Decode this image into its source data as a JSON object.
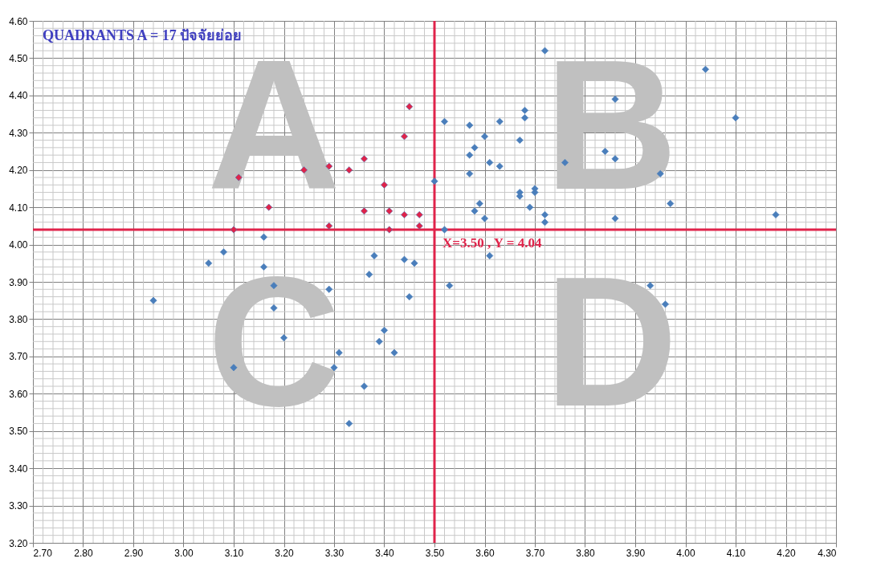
{
  "chart_data": {
    "type": "scatter",
    "title": "QUADRANTS A = 17 ปัจจัยย่อย",
    "series": [
      {
        "type": "scatter",
        "color": "#e0234a",
        "x": [
          3.11,
          3.17,
          3.1,
          3.24,
          3.29,
          3.29,
          3.33,
          3.36,
          3.36,
          3.4,
          3.41,
          3.41,
          3.44,
          3.44,
          3.45,
          3.47,
          3.47
        ],
        "values": [
          4.18,
          4.1,
          4.04,
          4.2,
          4.21,
          4.05,
          4.2,
          4.23,
          4.09,
          4.16,
          4.09,
          4.04,
          4.29,
          4.08,
          4.37,
          4.08,
          4.05
        ]
      },
      {
        "type": "scatter",
        "color": "#4a7ebb",
        "x": [
          3.5,
          3.52,
          3.57,
          3.57,
          3.58,
          3.57,
          3.58,
          3.59,
          3.6,
          3.6,
          3.61,
          3.63,
          3.63,
          3.67,
          3.67,
          3.67,
          3.68,
          3.68,
          3.69,
          3.7,
          3.7,
          3.72,
          3.72,
          3.72,
          3.76,
          3.84,
          3.86,
          3.86,
          3.86,
          3.95,
          3.97,
          4.04,
          4.1,
          4.18,
          3.52,
          2.94,
          3.05,
          3.08,
          3.1,
          3.16,
          3.16,
          3.18,
          3.18,
          3.2,
          3.29,
          3.3,
          3.31,
          3.33,
          3.36,
          3.37,
          3.38,
          3.39,
          3.4,
          3.42,
          3.44,
          3.45,
          3.46,
          3.53,
          3.61,
          3.93,
          3.96
        ],
        "values": [
          4.17,
          4.33,
          4.32,
          4.24,
          4.26,
          4.19,
          4.09,
          4.11,
          4.29,
          4.07,
          4.22,
          4.33,
          4.21,
          4.28,
          4.14,
          4.13,
          4.36,
          4.34,
          4.1,
          4.15,
          4.14,
          4.52,
          4.08,
          4.06,
          4.22,
          4.25,
          4.39,
          4.23,
          4.07,
          4.19,
          4.11,
          4.47,
          4.34,
          4.08,
          4.04,
          3.85,
          3.95,
          3.98,
          3.67,
          4.02,
          3.94,
          3.89,
          3.83,
          3.75,
          3.88,
          3.67,
          3.71,
          3.52,
          3.62,
          3.92,
          3.97,
          3.74,
          3.77,
          3.71,
          3.96,
          3.86,
          3.95,
          3.89,
          3.97,
          3.89,
          3.84
        ]
      }
    ],
    "marker": "diamond",
    "xlim": [
      2.7,
      4.3
    ],
    "xticks": [
      {
        "value": 2.7,
        "label": "2.70"
      },
      {
        "value": 2.8,
        "label": "2.80"
      },
      {
        "value": 2.9,
        "label": "2.90"
      },
      {
        "value": 3.0,
        "label": "3.00"
      },
      {
        "value": 3.1,
        "label": "3.10"
      },
      {
        "value": 3.2,
        "label": "3.20"
      },
      {
        "value": 3.3,
        "label": "3.30"
      },
      {
        "value": 3.4,
        "label": "3.40"
      },
      {
        "value": 3.5,
        "label": "3.50"
      },
      {
        "value": 3.6,
        "label": "3.60"
      },
      {
        "value": 3.7,
        "label": "3.70"
      },
      {
        "value": 3.8,
        "label": "3.80"
      },
      {
        "value": 3.9,
        "label": "3.90"
      },
      {
        "value": 4.0,
        "label": "4.00"
      },
      {
        "value": 4.1,
        "label": "4.10"
      },
      {
        "value": 4.2,
        "label": "4.20"
      },
      {
        "value": 4.3,
        "label": "4.30"
      }
    ],
    "ylim": [
      3.2,
      4.6
    ],
    "yticks": [
      {
        "value": 3.2,
        "label": "3.20"
      },
      {
        "value": 3.3,
        "label": "3.30"
      },
      {
        "value": 3.4,
        "label": "3.40"
      },
      {
        "value": 3.5,
        "label": "3.50"
      },
      {
        "value": 3.6,
        "label": "3.60"
      },
      {
        "value": 3.7,
        "label": "3.70"
      },
      {
        "value": 3.8,
        "label": "3.80"
      },
      {
        "value": 3.9,
        "label": "3.90"
      },
      {
        "value": 4.0,
        "label": "4.00"
      },
      {
        "value": 4.1,
        "label": "4.10"
      },
      {
        "value": 4.2,
        "label": "4.20"
      },
      {
        "value": 4.3,
        "label": "4.30"
      },
      {
        "value": 4.4,
        "label": "4.40"
      },
      {
        "value": 4.5,
        "label": "4.50"
      },
      {
        "value": 4.6,
        "label": "4.60"
      }
    ],
    "grid": true,
    "ref_lines": [
      {
        "axis": "x",
        "value": 3.5,
        "color": "#e0234a"
      },
      {
        "axis": "y",
        "value": 4.04,
        "color": "#e0234a",
        "label": "X=3.50  , Y = 4.04"
      }
    ],
    "annotations": [
      "A",
      "B",
      "C",
      "D"
    ]
  }
}
